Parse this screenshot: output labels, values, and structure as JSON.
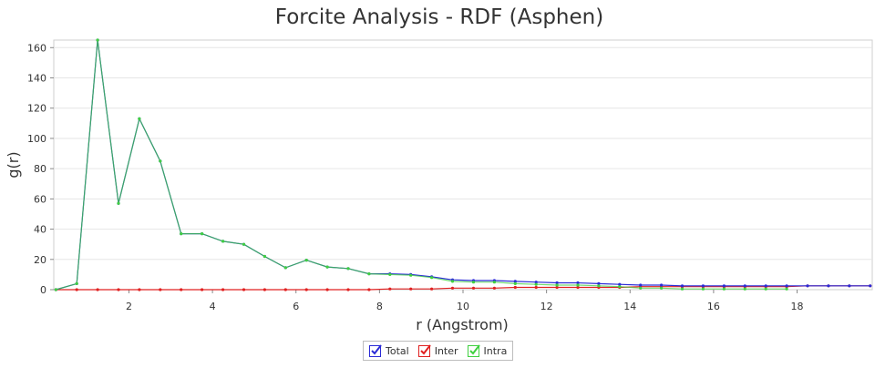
{
  "chart_data": {
    "type": "line",
    "title": "Forcite Analysis - RDF (Asphen)",
    "xlabel": "r (Angstrom)",
    "ylabel": "g(r)",
    "xlim": [
      0.2,
      19.8
    ],
    "ylim": [
      0,
      165
    ],
    "xticks": [
      2,
      4,
      6,
      8,
      10,
      12,
      14,
      16,
      18
    ],
    "yticks": [
      0,
      20,
      40,
      60,
      80,
      100,
      120,
      140,
      160
    ],
    "grid": true,
    "legend_position": "bottom-center",
    "series": [
      {
        "name": "Total",
        "color": "#2a2ad6",
        "x": [
          0.25,
          0.75,
          1.25,
          1.75,
          2.25,
          2.75,
          3.25,
          3.75,
          4.25,
          4.75,
          5.25,
          5.75,
          6.25,
          6.75,
          7.25,
          7.75,
          8.25,
          8.75,
          9.25,
          9.75,
          10.25,
          10.75,
          11.25,
          11.75,
          12.25,
          12.75,
          13.25,
          13.75,
          14.25,
          14.75,
          15.25,
          15.75,
          16.25,
          16.75,
          17.25,
          17.75,
          18.25,
          18.75,
          19.25,
          19.75
        ],
        "values": [
          0,
          4,
          165,
          57,
          113,
          85,
          37,
          37,
          32,
          30,
          22,
          14.5,
          19.5,
          15,
          14,
          10.5,
          10.5,
          10,
          8.5,
          6.5,
          6,
          6,
          5.5,
          5,
          4.5,
          4.5,
          4,
          3.5,
          3,
          3,
          2.5,
          2.5,
          2.5,
          2.5,
          2.5,
          2.5,
          2.5,
          2.5,
          2.5,
          2.5
        ]
      },
      {
        "name": "Inter",
        "color": "#e02020",
        "x": [
          0.25,
          0.75,
          1.25,
          1.75,
          2.25,
          2.75,
          3.25,
          3.75,
          4.25,
          4.75,
          5.25,
          5.75,
          6.25,
          6.75,
          7.25,
          7.75,
          8.25,
          8.75,
          9.25,
          9.75,
          10.25,
          10.75,
          11.25,
          11.75,
          12.25,
          12.75,
          13.25,
          13.75,
          14.25,
          14.75,
          15.25,
          15.75,
          16.25,
          16.75,
          17.25,
          17.75,
          18.25,
          18.75,
          19.25,
          19.75
        ],
        "values": [
          0,
          0,
          0,
          0,
          0,
          0,
          0,
          0,
          0,
          0,
          0,
          0,
          0,
          0,
          0,
          0,
          0.5,
          0.5,
          0.5,
          1,
          1,
          1,
          1.5,
          1.5,
          1.5,
          1.5,
          1.5,
          1.5,
          2,
          2,
          2,
          2,
          2,
          2,
          2,
          2,
          2.5,
          2.5,
          2.5,
          2.5
        ]
      },
      {
        "name": "Intra",
        "color": "#40d040",
        "x": [
          0.25,
          0.75,
          1.25,
          1.75,
          2.25,
          2.75,
          3.25,
          3.75,
          4.25,
          4.75,
          5.25,
          5.75,
          6.25,
          6.75,
          7.25,
          7.75,
          8.25,
          8.75,
          9.25,
          9.75,
          10.25,
          10.75,
          11.25,
          11.75,
          12.25,
          12.75,
          13.25,
          13.75,
          14.25,
          14.75,
          15.25,
          15.75,
          16.25,
          16.75,
          17.25,
          17.75
        ],
        "values": [
          0,
          4,
          165,
          57,
          113,
          85,
          37,
          37,
          32,
          30,
          22,
          14.5,
          19.5,
          15,
          14,
          10.5,
          10,
          9.5,
          8,
          5.5,
          5,
          5,
          4,
          3.5,
          3,
          3,
          2.5,
          2,
          1,
          1,
          0.5,
          0.5,
          0.5,
          0.5,
          0.5,
          0.5
        ]
      }
    ]
  }
}
